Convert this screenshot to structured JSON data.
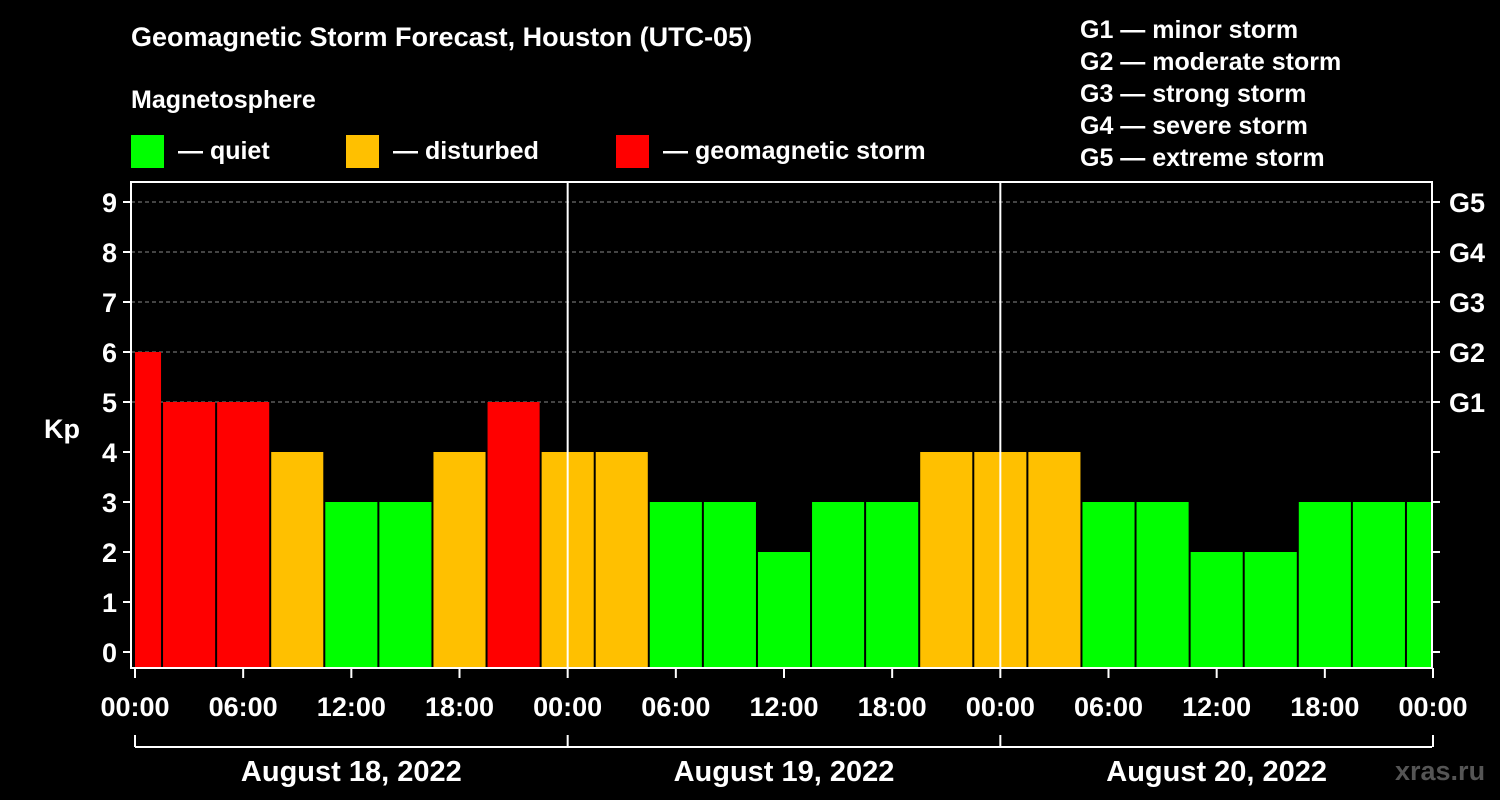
{
  "title": "Geomagnetic Storm Forecast, Houston (UTC-05)",
  "subtitle": "Magnetosphere",
  "legend": [
    {
      "label": "— quiet",
      "color": "#00ff00"
    },
    {
      "label": "— disturbed",
      "color": "#ffc000"
    },
    {
      "label": "— geomagnetic storm",
      "color": "#ff0000"
    }
  ],
  "g_scale": [
    "G1 — minor storm",
    "G2 — moderate storm",
    "G3 — strong storm",
    "G4 — severe storm",
    "G5 — extreme storm"
  ],
  "watermark": "xras.ru",
  "chart_data": {
    "type": "bar",
    "ylabel": "Kp",
    "ylim": [
      0,
      9
    ],
    "yticks": [
      "0",
      "1",
      "2",
      "3",
      "4",
      "5",
      "6",
      "7",
      "8",
      "9"
    ],
    "right_ticks": [
      {
        "kp": 5,
        "label": "G1"
      },
      {
        "kp": 6,
        "label": "G2"
      },
      {
        "kp": 7,
        "label": "G3"
      },
      {
        "kp": 8,
        "label": "G4"
      },
      {
        "kp": 9,
        "label": "G5"
      }
    ],
    "xticks": [
      "00:00",
      "06:00",
      "12:00",
      "18:00",
      "00:00",
      "06:00",
      "12:00",
      "18:00",
      "00:00",
      "06:00",
      "12:00",
      "18:00",
      "00:00"
    ],
    "days": [
      "August 18, 2022",
      "August 19, 2022",
      "August 20, 2022"
    ],
    "interval_hours": 3,
    "bars": [
      {
        "start_hour": 0,
        "end_hour": 1.5,
        "kp": 6
      },
      {
        "start_hour": 1.5,
        "end_hour": 4.5,
        "kp": 5
      },
      {
        "start_hour": 4.5,
        "end_hour": 7.5,
        "kp": 5
      },
      {
        "start_hour": 7.5,
        "end_hour": 10.5,
        "kp": 4
      },
      {
        "start_hour": 10.5,
        "end_hour": 13.5,
        "kp": 3
      },
      {
        "start_hour": 13.5,
        "end_hour": 16.5,
        "kp": 3
      },
      {
        "start_hour": 16.5,
        "end_hour": 19.5,
        "kp": 4
      },
      {
        "start_hour": 19.5,
        "end_hour": 22.5,
        "kp": 5
      },
      {
        "start_hour": 22.5,
        "end_hour": 25.5,
        "kp": 4
      },
      {
        "start_hour": 25.5,
        "end_hour": 28.5,
        "kp": 4
      },
      {
        "start_hour": 28.5,
        "end_hour": 31.5,
        "kp": 3
      },
      {
        "start_hour": 31.5,
        "end_hour": 34.5,
        "kp": 3
      },
      {
        "start_hour": 34.5,
        "end_hour": 37.5,
        "kp": 2
      },
      {
        "start_hour": 37.5,
        "end_hour": 40.5,
        "kp": 3
      },
      {
        "start_hour": 40.5,
        "end_hour": 43.5,
        "kp": 3
      },
      {
        "start_hour": 43.5,
        "end_hour": 46.5,
        "kp": 4
      },
      {
        "start_hour": 46.5,
        "end_hour": 49.5,
        "kp": 4
      },
      {
        "start_hour": 49.5,
        "end_hour": 52.5,
        "kp": 4
      },
      {
        "start_hour": 52.5,
        "end_hour": 55.5,
        "kp": 3
      },
      {
        "start_hour": 55.5,
        "end_hour": 58.5,
        "kp": 3
      },
      {
        "start_hour": 58.5,
        "end_hour": 61.5,
        "kp": 2
      },
      {
        "start_hour": 61.5,
        "end_hour": 64.5,
        "kp": 2
      },
      {
        "start_hour": 64.5,
        "end_hour": 67.5,
        "kp": 3
      },
      {
        "start_hour": 67.5,
        "end_hour": 70.5,
        "kp": 3
      },
      {
        "start_hour": 70.5,
        "end_hour": 72,
        "kp": 3
      }
    ],
    "color_scale": {
      "quiet": "#00ff00",
      "disturbed": "#ffc000",
      "storm": "#ff0000"
    }
  }
}
